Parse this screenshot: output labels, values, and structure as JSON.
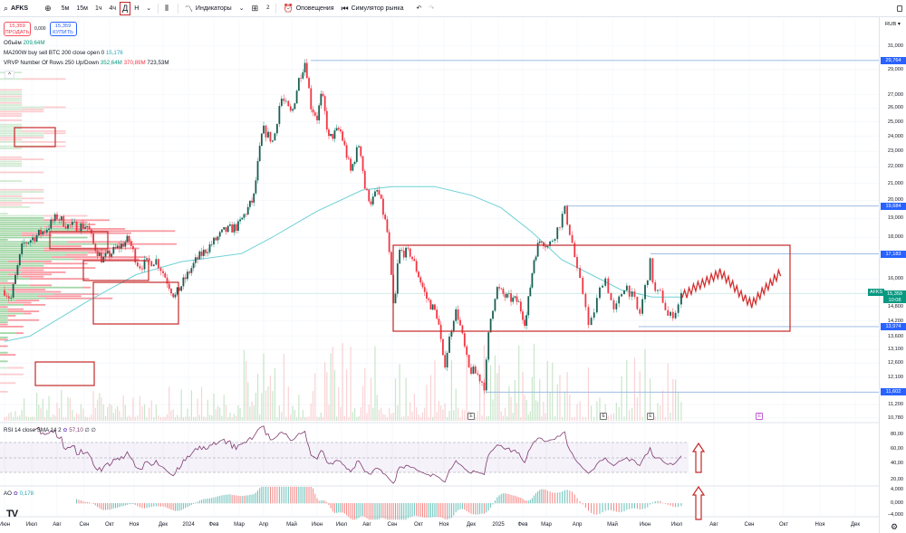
{
  "toolbar": {
    "symbol": "AFKS",
    "intervals": [
      "5м",
      "15м",
      "1ч",
      "4ч",
      "Д",
      "Н"
    ],
    "selected_interval": "Д",
    "indicators_label": "Индикаторы",
    "layouts_count": "2",
    "alerts_label": "Оповещения",
    "simulator_label": "Симулятор рынка"
  },
  "trade": {
    "sell_price": "15,359",
    "sell_label": "ПРОДАТЬ",
    "spread": "0,000",
    "buy_price": "15,359",
    "buy_label": "КУПИТЬ"
  },
  "legend": {
    "volume_name": "Объём",
    "volume_value": "209,64M",
    "ma_name": "MA200W buy sell BTC 200 close open 0",
    "ma_value": "15,176",
    "vrvp_name": "VRVP Number Of Rows 250 Up/Down",
    "vrvp_up": "352,64M",
    "vrvp_down": "370,89M",
    "vrvp_total": "723,53M",
    "rsi_name": "RSI 14 close SMA 14 2",
    "rsi_value": "57,10",
    "rsi_extra": "∅ ∅",
    "ao_name": "AO",
    "ao_value": "0,178"
  },
  "price_axis": {
    "currency": "RUB",
    "labels": [
      "31,000",
      "29,000",
      "27,000",
      "26,000",
      "25,000",
      "24,000",
      "23,000",
      "22,000",
      "21,000",
      "20,000",
      "19,000",
      "18,000",
      "16,000",
      "14,800",
      "14,200",
      "13,600",
      "13,100",
      "12,600",
      "12,100",
      "11,200",
      "10,780"
    ],
    "level_tags": [
      "29,764",
      "19,684",
      "17,183",
      "13,974",
      "11,602"
    ],
    "current_price": "15,359",
    "countdown": "10:08",
    "symbol_tag": "AFKS",
    "rsi_labels": [
      "80,00",
      "60,00",
      "40,00",
      "20,00"
    ],
    "ao_labels": [
      "4,000",
      "0,000",
      "−4,000"
    ]
  },
  "time_axis": [
    "Июн",
    "Июл",
    "Авг",
    "Сен",
    "Окт",
    "Ноя",
    "Дек",
    "2024",
    "Фев",
    "Мар",
    "Апр",
    "Май",
    "Июн",
    "Июл",
    "Авг",
    "Сен",
    "Окт",
    "Ноя",
    "Дек",
    "2025",
    "Фев",
    "Мар",
    "Апр",
    "Май",
    "Июн",
    "Июл",
    "Авг",
    "Сен",
    "Окт",
    "Ноя",
    "Дек"
  ],
  "earnings_marker": "E",
  "colors": {
    "up": "#089981",
    "down": "#f23645",
    "ma": "#6fd0d6",
    "level": "#90b4e0",
    "annotation": "#c62828",
    "rsi": "#7e57c2"
  },
  "chart_data": {
    "type": "candlestick",
    "symbol": "AFKS",
    "x_unit": "months since 2023-06-01",
    "price_scale": "log",
    "ylim": [
      10.78,
      31.0
    ],
    "close_series": [
      [
        0,
        15.5
      ],
      [
        0.23,
        15.1
      ],
      [
        0.67,
        17.65
      ],
      [
        1.54,
        18.4
      ],
      [
        2.0,
        19.1
      ],
      [
        2.4,
        18.6
      ],
      [
        3.14,
        18.6
      ],
      [
        3.36,
        17.65
      ],
      [
        3.71,
        16.9
      ],
      [
        4.78,
        17.9
      ],
      [
        5.16,
        16.6
      ],
      [
        5.75,
        16.9
      ],
      [
        6.46,
        15.2
      ],
      [
        7.32,
        16.9
      ],
      [
        8.39,
        18.3
      ],
      [
        8.96,
        18.6
      ],
      [
        9.59,
        20.1
      ],
      [
        9.96,
        24.5
      ],
      [
        10.35,
        23.6
      ],
      [
        10.61,
        26.8
      ],
      [
        11.0,
        25.5
      ],
      [
        11.29,
        28.3
      ],
      [
        11.54,
        29.76
      ],
      [
        11.75,
        26.2
      ],
      [
        12.0,
        25.3
      ],
      [
        12.19,
        27.1
      ],
      [
        12.48,
        23.8
      ],
      [
        12.93,
        24.5
      ],
      [
        13.36,
        21.7
      ],
      [
        13.71,
        23.6
      ],
      [
        13.93,
        20.6
      ],
      [
        14.18,
        19.9
      ],
      [
        14.43,
        20.6
      ],
      [
        14.79,
        18.4
      ],
      [
        15.07,
        14.4
      ],
      [
        15.24,
        17.3
      ],
      [
        15.69,
        17.2
      ],
      [
        16.29,
        15.2
      ],
      [
        16.75,
        14.4
      ],
      [
        17.0,
        12.4
      ],
      [
        17.4,
        14.6
      ],
      [
        17.5,
        14.5
      ],
      [
        17.9,
        12.4
      ],
      [
        18.23,
        12.2
      ],
      [
        18.5,
        11.8
      ],
      [
        18.67,
        14.0
      ],
      [
        18.93,
        15.6
      ],
      [
        19.3,
        15.2
      ],
      [
        19.81,
        15.0
      ],
      [
        20.12,
        14.1
      ],
      [
        20.5,
        17.1
      ],
      [
        20.77,
        18.0
      ],
      [
        21.06,
        17.5
      ],
      [
        21.41,
        18.6
      ],
      [
        21.59,
        19.5
      ],
      [
        21.85,
        17.65
      ],
      [
        22.0,
        16.3
      ],
      [
        22.28,
        14.7
      ],
      [
        22.33,
        13.8
      ],
      [
        22.77,
        16.2
      ],
      [
        23.05,
        14.5
      ],
      [
        23.39,
        15.8
      ],
      [
        23.72,
        14.9
      ],
      [
        23.81,
        14.3
      ],
      [
        24.17,
        16.8
      ],
      [
        24.29,
        15.4
      ],
      [
        24.51,
        15.3
      ],
      [
        24.74,
        14.3
      ],
      [
        25.0,
        14.7
      ],
      [
        25.15,
        15.36
      ]
    ],
    "ma200w_series": [
      [
        0,
        13.4
      ],
      [
        0.93,
        13.6
      ],
      [
        3.1,
        15.0
      ],
      [
        5.07,
        16.2
      ],
      [
        6.71,
        16.8
      ],
      [
        9.1,
        17.2
      ],
      [
        10.29,
        18.0
      ],
      [
        12.0,
        19.4
      ],
      [
        13.82,
        20.6
      ],
      [
        15.0,
        20.8
      ],
      [
        16.64,
        20.8
      ],
      [
        18.0,
        20.3
      ],
      [
        19.1,
        19.6
      ],
      [
        20.37,
        18.3
      ],
      [
        21.5,
        16.9
      ],
      [
        22.4,
        16.2
      ],
      [
        23.28,
        15.5
      ],
      [
        24.23,
        15.2
      ],
      [
        25.15,
        15.2
      ]
    ],
    "forecast_path": [
      [
        25.15,
        15.36
      ],
      [
        25.24,
        15.3
      ],
      [
        25.46,
        15.6
      ],
      [
        25.8,
        15.9
      ],
      [
        26.18,
        16.3
      ],
      [
        26.49,
        15.8
      ],
      [
        26.82,
        15.2
      ],
      [
        27.08,
        14.9
      ],
      [
        27.42,
        15.5
      ],
      [
        27.68,
        15.9
      ],
      [
        27.95,
        16.4
      ]
    ],
    "levels": [
      {
        "price": 29.764,
        "from": 11.75
      },
      {
        "price": 19.684,
        "from": 21.59
      },
      {
        "price": 17.183,
        "from": 24.17
      },
      {
        "price": 13.974,
        "from": 23.8
      },
      {
        "price": 11.602,
        "from": 18.55
      }
    ],
    "annotation_range": {
      "from": 15.07,
      "to": 28.2,
      "low": 13.7,
      "high": 17.5
    },
    "earnings": [
      18.0,
      22.75,
      24.17,
      27.3
    ]
  }
}
